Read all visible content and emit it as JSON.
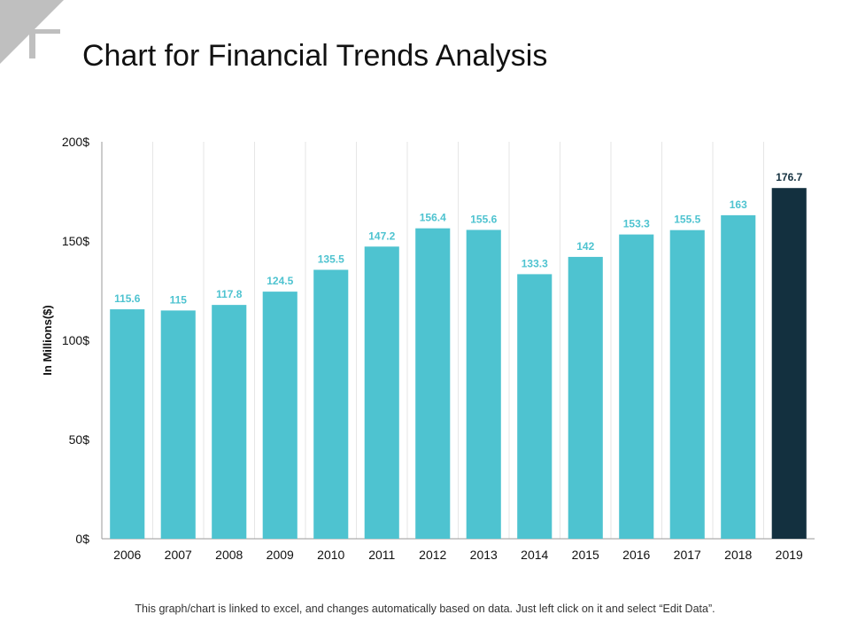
{
  "title": "Chart for Financial Trends Analysis",
  "footer": "This graph/chart is linked to excel, and changes automatically based on data. Just left click on it and select “Edit Data”.",
  "colors": {
    "bar": "#4EC3D0",
    "highlight": "#13303F",
    "highlight_label": "#13303F",
    "label": "#4EC3D0",
    "corner": "#BFBFBF"
  },
  "chart_data": {
    "type": "bar",
    "title": "Chart for Financial Trends Analysis",
    "xlabel": "",
    "ylabel": "In Millions($)",
    "ylim": [
      0,
      200
    ],
    "yticks": [
      0,
      50,
      100,
      150,
      200
    ],
    "ytick_labels": [
      "0$",
      "50$",
      "100$",
      "150$",
      "200$"
    ],
    "categories": [
      "2006",
      "2007",
      "2008",
      "2009",
      "2010",
      "2011",
      "2012",
      "2013",
      "2014",
      "2015",
      "2016",
      "2017",
      "2018",
      "2019"
    ],
    "values": [
      115.6,
      115,
      117.8,
      124.5,
      135.5,
      147.2,
      156.4,
      155.6,
      133.3,
      142,
      153.3,
      155.5,
      163,
      176.7
    ],
    "value_labels": [
      "115.6",
      "115",
      "117.8",
      "124.5",
      "135.5",
      "147.2",
      "156.4",
      "155.6",
      "133.3",
      "142",
      "153.3",
      "155.5",
      "163",
      "176.7"
    ],
    "highlight_category": "2019",
    "grid": "vertical"
  }
}
